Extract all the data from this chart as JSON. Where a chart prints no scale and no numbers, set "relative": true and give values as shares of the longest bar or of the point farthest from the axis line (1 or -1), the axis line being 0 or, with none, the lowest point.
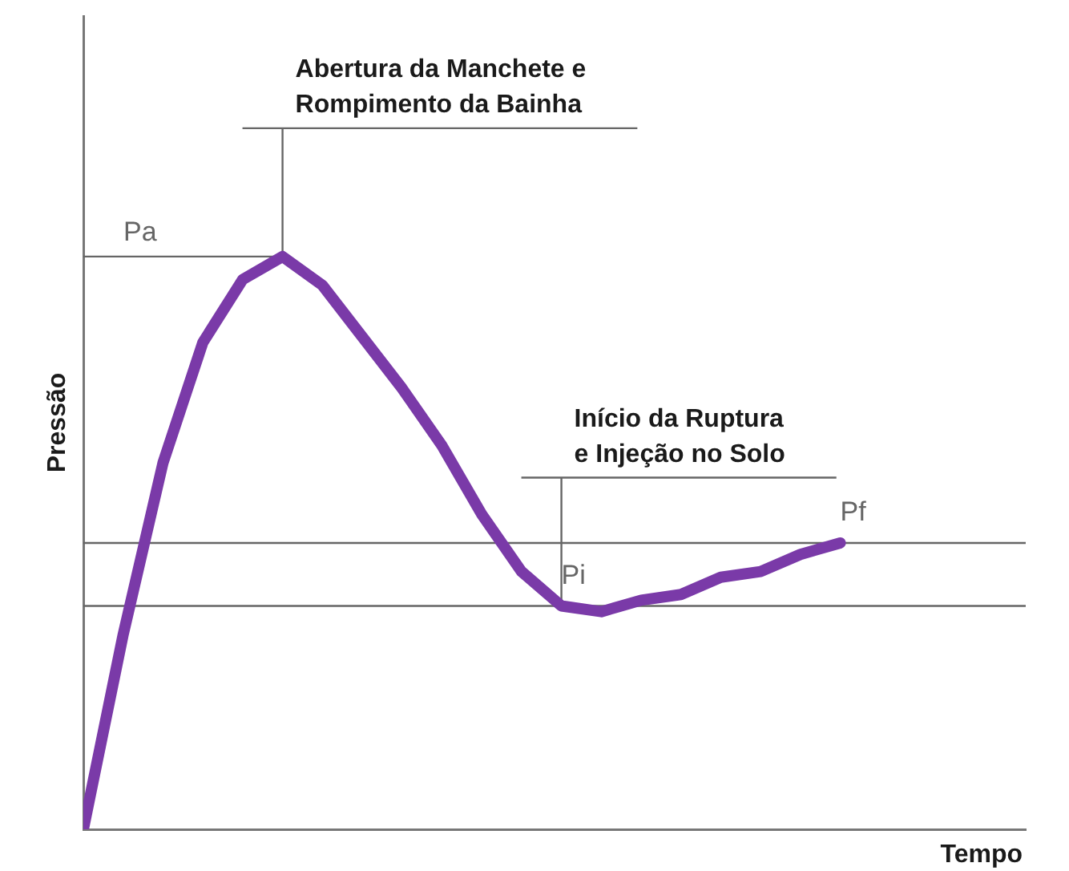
{
  "chart_data": {
    "type": "line",
    "relative": true,
    "xlabel": "Tempo",
    "ylabel": "Pressão",
    "categories": [
      null,
      null,
      null,
      null,
      null,
      null,
      null,
      null,
      null,
      null,
      null,
      null,
      null,
      null,
      null,
      null,
      null,
      null,
      null,
      null
    ],
    "series": [
      {
        "values": [
          0,
          0.34,
          0.64,
          0.85,
          0.96,
          1,
          0.95,
          0.86,
          0.77,
          0.67,
          0.55,
          0.45,
          0.39,
          0.38,
          0.4,
          0.41,
          0.44,
          0.45,
          0.48,
          0.5
        ],
        "color": "#7a3aa8"
      }
    ],
    "ref_lines": [
      {
        "axis": "y",
        "value": 1,
        "label": "Pa",
        "color": "#666666"
      },
      {
        "axis": "y",
        "value": 0.39,
        "label": "Pi",
        "color": "#666666"
      },
      {
        "axis": "y",
        "value": 0.5,
        "label": "Pf",
        "color": "#666666"
      }
    ],
    "annotations": [
      "Abertura da Manchete e\nRompimento da Bainha",
      "Início da Ruptura\ne Injeção no Solo"
    ],
    "legend": false,
    "grid": false,
    "marker": "none",
    "line_style": "solid"
  }
}
